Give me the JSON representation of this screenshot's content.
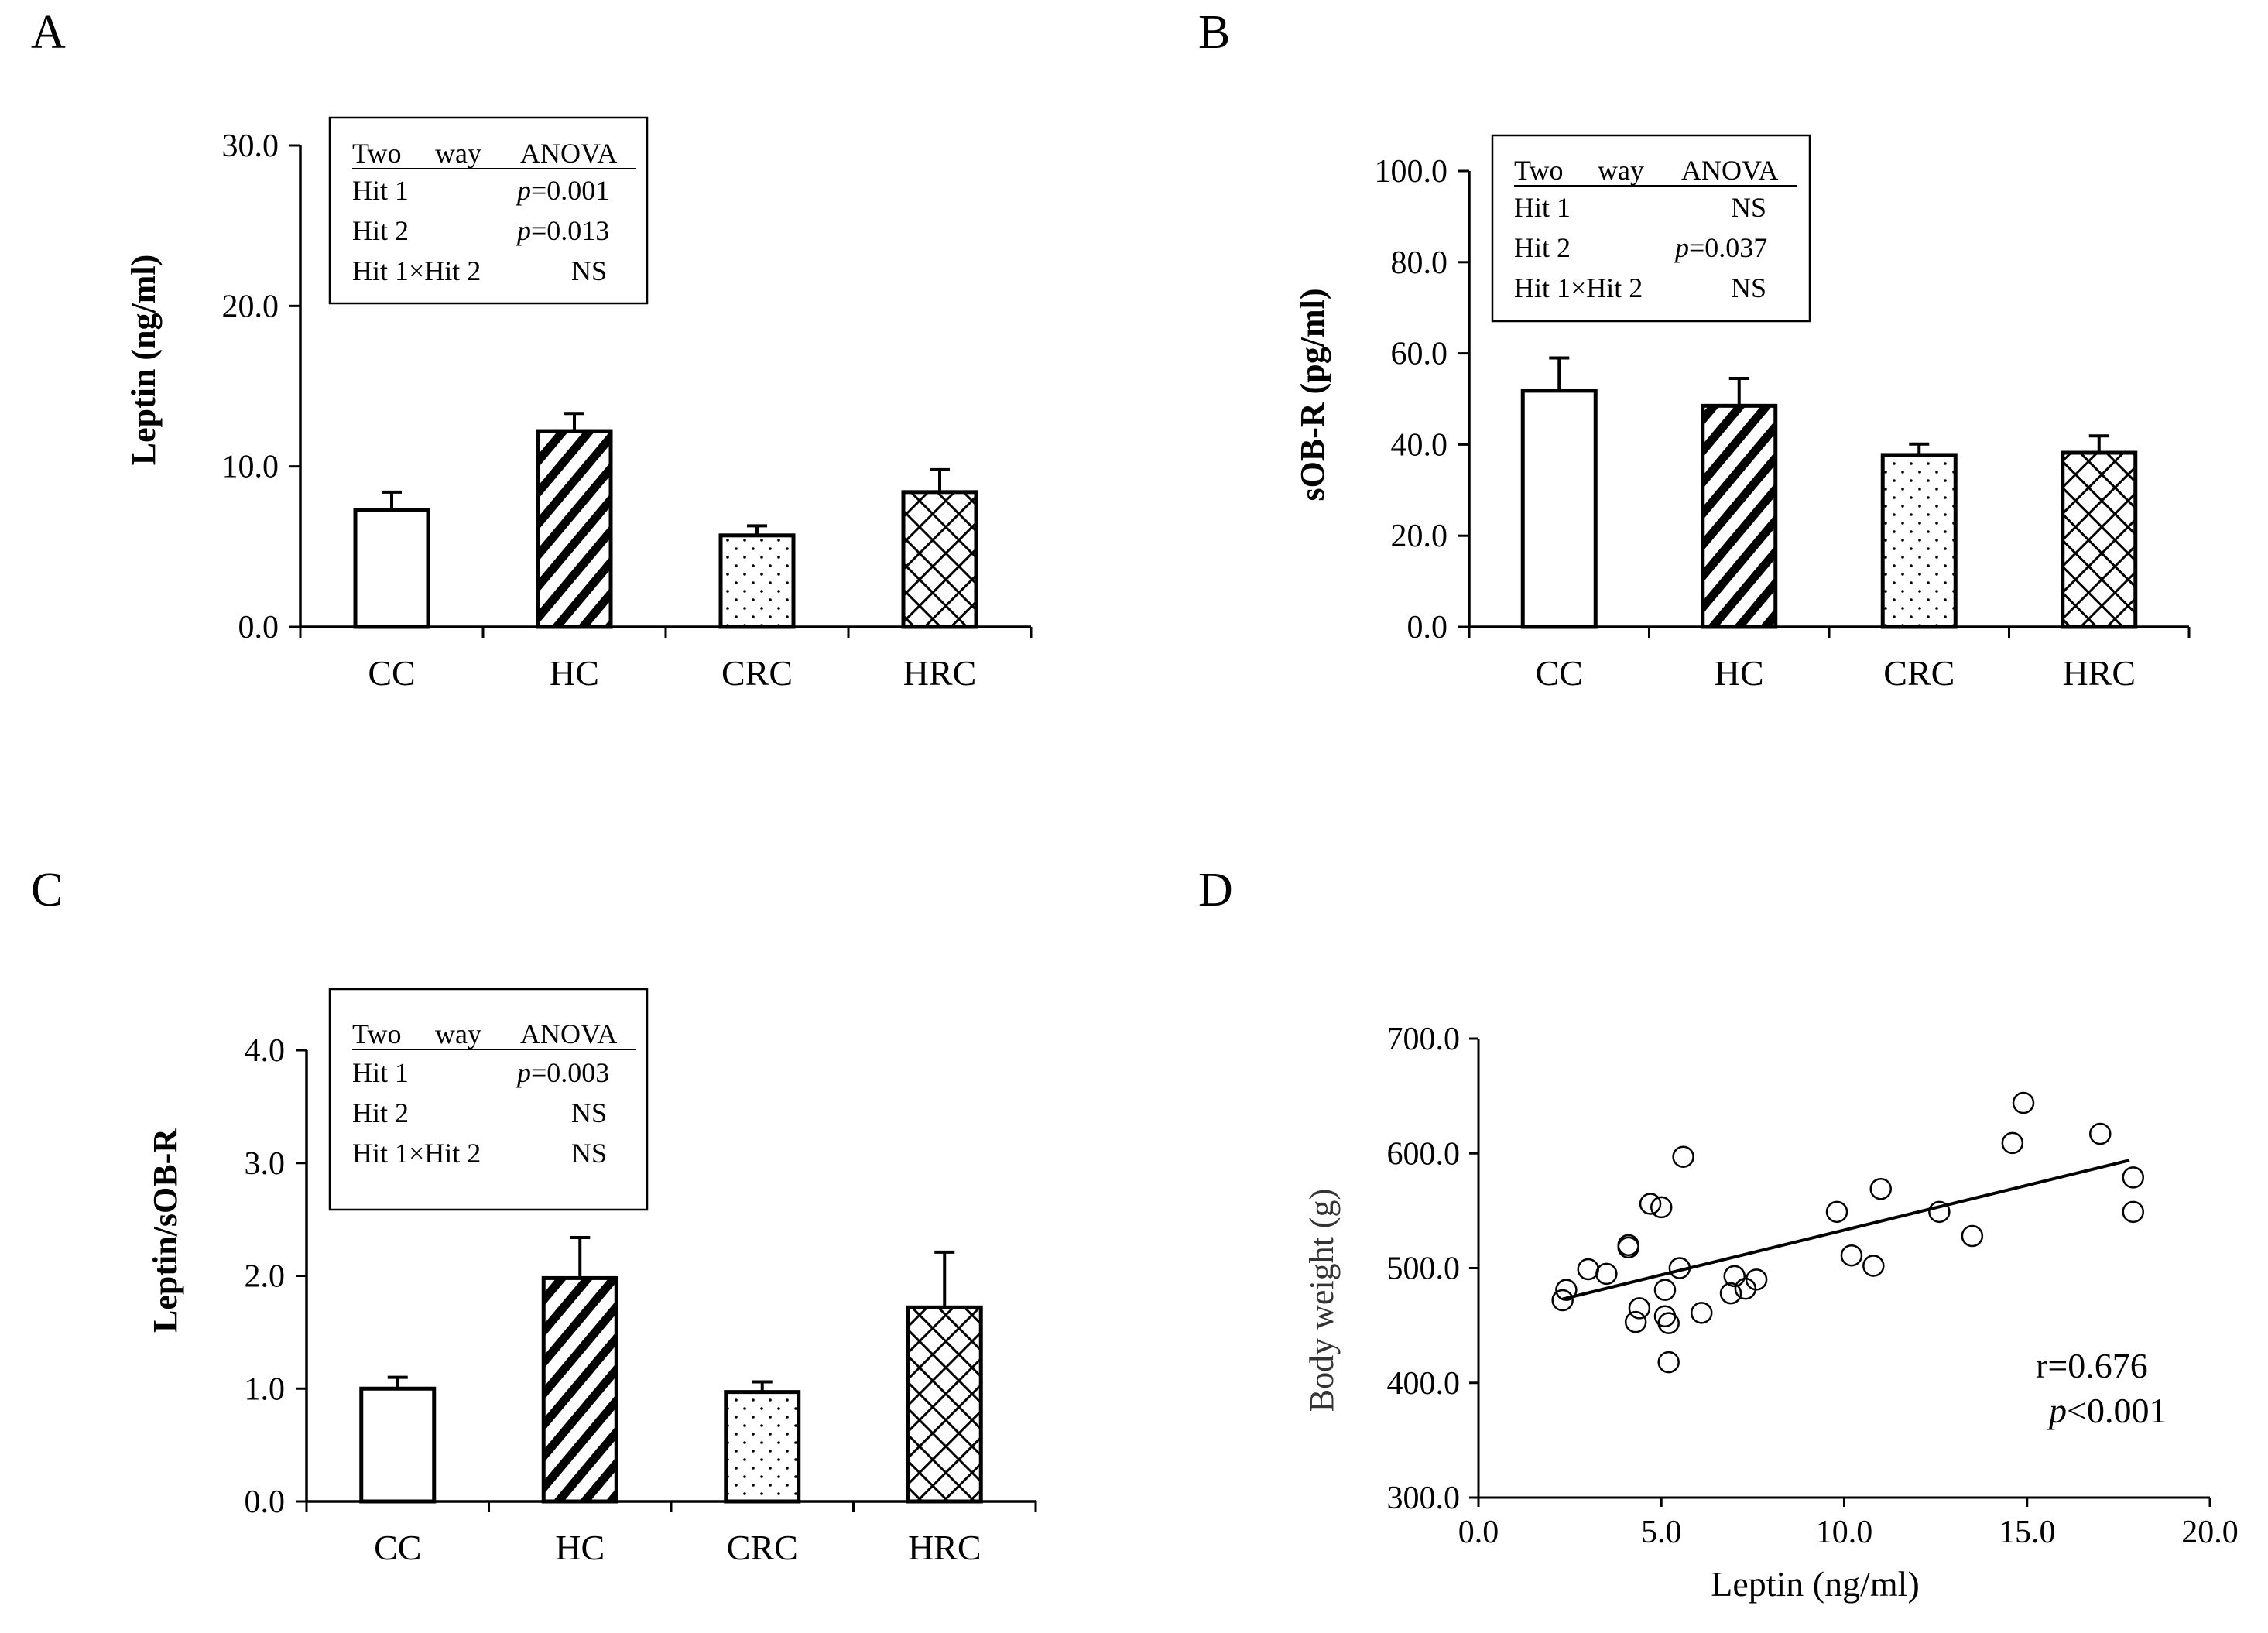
{
  "figure": {
    "panels": {
      "A": {
        "letter": "A"
      },
      "B": {
        "letter": "B"
      },
      "C": {
        "letter": "C"
      },
      "D": {
        "letter": "D"
      }
    }
  },
  "chart_data": [
    {
      "id": "A",
      "type": "bar",
      "ylabel": "Leptin (ng/ml)",
      "xlabel": "",
      "categories": [
        "CC",
        "HC",
        "CRC",
        "HRC"
      ],
      "patterns": [
        "none",
        "diagonal",
        "dots",
        "crosshatch"
      ],
      "values": [
        7.3,
        12.2,
        5.7,
        8.4
      ],
      "errors": [
        1.1,
        1.1,
        0.6,
        1.4
      ],
      "ylim": [
        0,
        30
      ],
      "yticks": [
        "0.0",
        "10.0",
        "20.0",
        "30.0"
      ],
      "anova": {
        "header": [
          "Two",
          "way",
          "ANOVA"
        ],
        "rows": [
          {
            "label": "Hit 1",
            "p": "p",
            "value": "=0.001"
          },
          {
            "label": "Hit 2",
            "p": "p",
            "value": "=0.013"
          },
          {
            "label": "Hit 1×Hit 2",
            "p": "",
            "value": "NS"
          }
        ]
      }
    },
    {
      "id": "B",
      "type": "bar",
      "ylabel": "sOB-R (pg/ml)",
      "xlabel": "",
      "categories": [
        "CC",
        "HC",
        "CRC",
        "HRC"
      ],
      "patterns": [
        "none",
        "diagonal",
        "dots",
        "crosshatch"
      ],
      "values": [
        51.8,
        48.5,
        37.7,
        38.2
      ],
      "errors": [
        7.2,
        6.0,
        2.4,
        3.7
      ],
      "ylim": [
        0,
        100
      ],
      "yticks": [
        "0.0",
        "20.0",
        "40.0",
        "60.0",
        "80.0",
        "100.0"
      ],
      "anova": {
        "header": [
          "Two",
          "way",
          "ANOVA"
        ],
        "rows": [
          {
            "label": "Hit 1",
            "p": "",
            "value": "NS"
          },
          {
            "label": "Hit 2",
            "p": "p",
            "value": "=0.037"
          },
          {
            "label": "Hit 1×Hit 2",
            "p": "",
            "value": "NS"
          }
        ]
      }
    },
    {
      "id": "C",
      "type": "bar",
      "ylabel": "Leptin/sOB-R",
      "xlabel": "",
      "categories": [
        "CC",
        "HC",
        "CRC",
        "HRC"
      ],
      "patterns": [
        "none",
        "diagonal",
        "dots",
        "crosshatch"
      ],
      "values": [
        1.0,
        1.98,
        0.97,
        1.72
      ],
      "errors": [
        0.1,
        0.36,
        0.09,
        0.49
      ],
      "ylim": [
        0,
        4
      ],
      "yticks": [
        "0.0",
        "1.0",
        "2.0",
        "3.0",
        "4.0"
      ],
      "anova": {
        "header": [
          "Two",
          "way",
          "ANOVA"
        ],
        "rows": [
          {
            "label": "Hit 1",
            "p": "p",
            "value": "=0.003"
          },
          {
            "label": "Hit 2",
            "p": "",
            "value": "NS"
          },
          {
            "label": "Hit 1×Hit 2",
            "p": "",
            "value": "NS"
          }
        ]
      }
    },
    {
      "id": "D",
      "type": "scatter",
      "xlabel": "Leptin (ng/ml)",
      "ylabel": "Body weight (g)",
      "xlim": [
        0,
        20
      ],
      "ylim": [
        300,
        700
      ],
      "xticks": [
        "0.0",
        "5.0",
        "10.0",
        "15.0",
        "20.0"
      ],
      "yticks": [
        "300.0",
        "400.0",
        "500.0",
        "600.0",
        "700.0"
      ],
      "points": [
        [
          2.3,
          472
        ],
        [
          2.4,
          481
        ],
        [
          3.0,
          499
        ],
        [
          3.5,
          495
        ],
        [
          4.1,
          518
        ],
        [
          4.1,
          520
        ],
        [
          4.3,
          453
        ],
        [
          4.4,
          465
        ],
        [
          4.7,
          556
        ],
        [
          5.0,
          553
        ],
        [
          5.1,
          458
        ],
        [
          5.1,
          481
        ],
        [
          5.2,
          452
        ],
        [
          5.2,
          418
        ],
        [
          5.5,
          500
        ],
        [
          5.6,
          597
        ],
        [
          6.1,
          461
        ],
        [
          6.9,
          478
        ],
        [
          7.0,
          493
        ],
        [
          7.3,
          482
        ],
        [
          7.6,
          490
        ],
        [
          9.8,
          549
        ],
        [
          10.2,
          511
        ],
        [
          10.8,
          502
        ],
        [
          11.0,
          569
        ],
        [
          12.6,
          549
        ],
        [
          13.5,
          528
        ],
        [
          14.6,
          609
        ],
        [
          14.9,
          644
        ],
        [
          17.0,
          617
        ],
        [
          17.9,
          579
        ],
        [
          17.9,
          549
        ]
      ],
      "regression_line": {
        "x": [
          2.3,
          17.8
        ],
        "y": [
          473,
          594
        ]
      },
      "stats": {
        "r": "r=0.676",
        "p_symbol": "p",
        "p_value": "<0.001"
      }
    }
  ]
}
